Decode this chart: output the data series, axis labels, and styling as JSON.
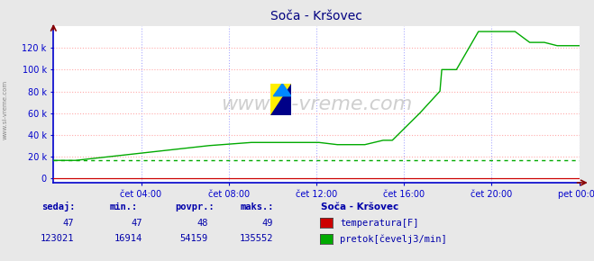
{
  "title": "Soča - Kršovec",
  "title_color": "#000080",
  "background_color": "#e8e8e8",
  "plot_bg_color": "#ffffff",
  "grid_color_h": "#ffaaaa",
  "grid_color_v": "#aaaaff",
  "xlabel_ticks": [
    "čet 04:00",
    "čet 08:00",
    "čet 12:00",
    "čet 16:00",
    "čet 20:00",
    "pet 00:00"
  ],
  "ytick_values": [
    0,
    20000,
    40000,
    60000,
    80000,
    100000,
    120000
  ],
  "ymax": 140000,
  "ymin": -4000,
  "watermark": "www.si-vreme.com",
  "legend_title": "Soča - Kršovec",
  "legend_entries": [
    "temperatura[F]",
    "pretok[čevelj3/min]"
  ],
  "legend_colors": [
    "#cc0000",
    "#00aa00"
  ],
  "table_headers": [
    "sedaj:",
    "min.:",
    "povpr.:",
    "maks.:"
  ],
  "table_temp": [
    "47",
    "47",
    "48",
    "49"
  ],
  "table_flow": [
    "123021",
    "16914",
    "54159",
    "135552"
  ],
  "temp_line_color": "#cc0000",
  "flow_line_color": "#00aa00",
  "temp_dot_color": "#00aa00",
  "axis_color": "#0000cc",
  "tick_label_color": "#0000cc",
  "table_text_color": "#0000aa",
  "sidebar_text": "www.si-vreme.com",
  "temp_value": 16500,
  "n_points": 288
}
